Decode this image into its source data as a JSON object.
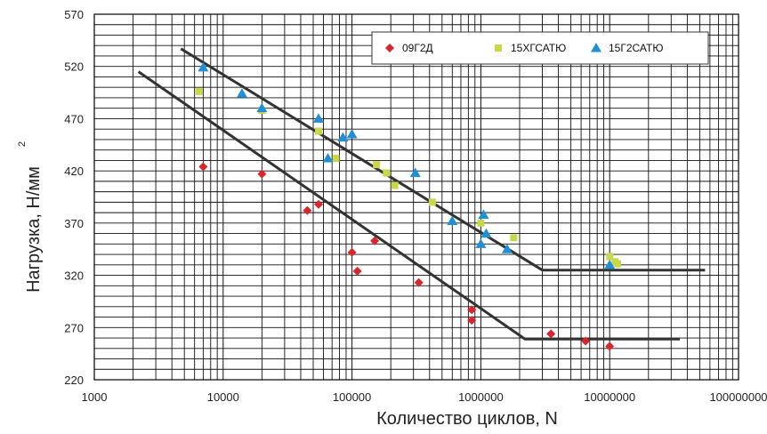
{
  "chart_data": {
    "type": "scatter",
    "xscale": "log",
    "xlim": [
      1000,
      100000000
    ],
    "ylim": [
      220,
      570
    ],
    "x_ticks": [
      1000,
      10000,
      100000,
      1000000,
      10000000,
      100000000
    ],
    "x_tick_labels": [
      "1000",
      "10000",
      "100000",
      "1000000",
      "10000000",
      "100000000"
    ],
    "y_ticks": [
      220,
      270,
      320,
      370,
      420,
      470,
      520,
      570
    ],
    "xlabel": "Количество циклов, N",
    "ylabel": "Нагрузка, Н/мм",
    "ylabel_sup": "2",
    "grid": true,
    "legend_position": "top-right",
    "series": [
      {
        "name": "09Г2Д",
        "marker": "diamond",
        "color": "#d9262c",
        "points": [
          [
            7000,
            424
          ],
          [
            20000,
            417
          ],
          [
            45000,
            382
          ],
          [
            55000,
            388
          ],
          [
            100000,
            342
          ],
          [
            110000,
            324
          ],
          [
            150000,
            353
          ],
          [
            330000,
            313
          ],
          [
            850000,
            287
          ],
          [
            850000,
            277
          ],
          [
            3500000,
            264
          ],
          [
            6500000,
            257
          ],
          [
            10000000,
            252
          ]
        ]
      },
      {
        "name": "15ХГСАТЮ",
        "marker": "square",
        "color": "#c8d84a",
        "points": [
          [
            6500,
            496
          ],
          [
            20000,
            478
          ],
          [
            55000,
            458
          ],
          [
            75000,
            432
          ],
          [
            155000,
            426
          ],
          [
            185000,
            418
          ],
          [
            215000,
            406
          ],
          [
            420000,
            390
          ],
          [
            1000000,
            370
          ],
          [
            1800000,
            356
          ],
          [
            10000000,
            338
          ],
          [
            11000000,
            333
          ],
          [
            11500000,
            331
          ]
        ]
      },
      {
        "name": "15Г2САТЮ",
        "marker": "triangle",
        "color": "#1f8fd6",
        "points": [
          [
            7000,
            519
          ],
          [
            14000,
            494
          ],
          [
            20000,
            480
          ],
          [
            55000,
            470
          ],
          [
            65000,
            432
          ],
          [
            85000,
            452
          ],
          [
            100000,
            455
          ],
          [
            310000,
            418
          ],
          [
            600000,
            372
          ],
          [
            1000000,
            350
          ],
          [
            1050000,
            378
          ],
          [
            1100000,
            360
          ],
          [
            1600000,
            345
          ],
          [
            10000000,
            330
          ]
        ]
      }
    ],
    "fit_lines": [
      {
        "points": [
          [
            4700,
            537
          ],
          [
            3000000,
            325
          ],
          [
            55000000,
            325
          ]
        ],
        "color": "#333333"
      },
      {
        "points": [
          [
            2200,
            515
          ],
          [
            2200000,
            259
          ],
          [
            35000000,
            259
          ]
        ],
        "color": "#333333"
      }
    ]
  }
}
